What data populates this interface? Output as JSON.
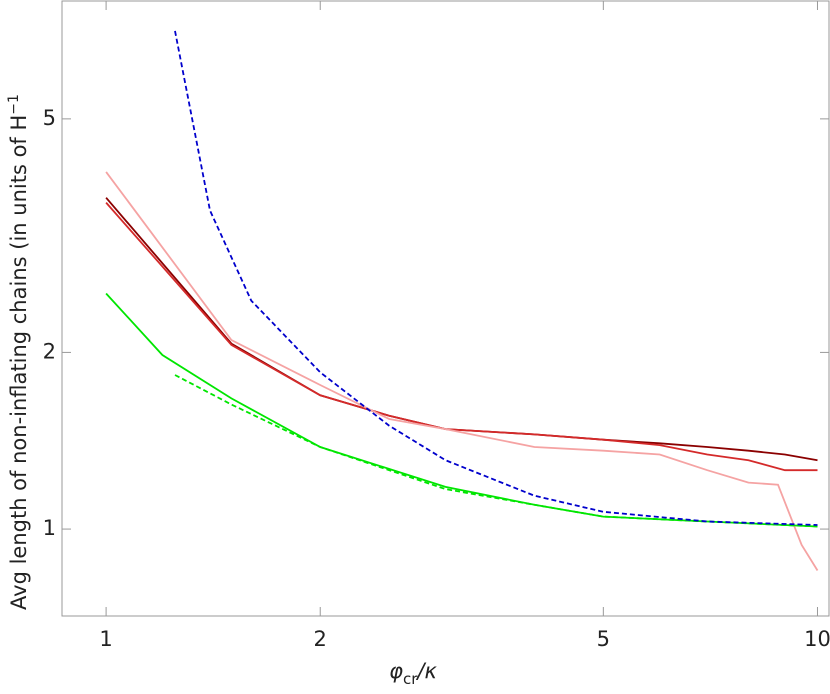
{
  "chart_data": {
    "type": "line",
    "xlabel": [
      "φ",
      "cr",
      "/κ"
    ],
    "ylabel": [
      "Avg length of non-inflating chains (in units of H",
      "−1"
    ],
    "xscale": "log",
    "yscale": "log",
    "xlim": [
      0.867,
      10.38
    ],
    "ylim": [
      0.711,
      7.94
    ],
    "xticks": [
      1,
      2,
      5,
      10
    ],
    "yticks": [
      1,
      2,
      5
    ],
    "series": [
      {
        "color": "#8b0000",
        "dash": false,
        "x": [
          1,
          1.5,
          2,
          2.5,
          3,
          4,
          5,
          6,
          7,
          8,
          9,
          10
        ],
        "values": [
          3.67,
          2.07,
          1.69,
          1.56,
          1.48,
          1.45,
          1.42,
          1.4,
          1.38,
          1.36,
          1.34,
          1.31
        ]
      },
      {
        "color": "#d42a2a",
        "dash": false,
        "x": [
          1,
          1.5,
          2,
          2.5,
          3,
          4,
          5,
          6,
          7,
          8,
          9,
          10
        ],
        "values": [
          3.6,
          2.06,
          1.69,
          1.56,
          1.48,
          1.45,
          1.42,
          1.39,
          1.34,
          1.31,
          1.26,
          1.26
        ]
      },
      {
        "color": "#f5a3a3",
        "dash": false,
        "x": [
          1,
          1.5,
          2,
          2.5,
          3,
          4,
          5,
          6,
          7,
          8,
          8.8,
          9.5,
          10
        ],
        "values": [
          4.06,
          2.1,
          1.76,
          1.54,
          1.48,
          1.38,
          1.36,
          1.34,
          1.26,
          1.2,
          1.19,
          0.94,
          0.85
        ]
      },
      {
        "color": "#00e600",
        "dash": false,
        "x": [
          1,
          1.2,
          1.5,
          2,
          3,
          4,
          5,
          7,
          10
        ],
        "values": [
          2.52,
          1.98,
          1.67,
          1.38,
          1.18,
          1.1,
          1.05,
          1.03,
          1.01
        ]
      },
      {
        "color": "#00e600",
        "dash": true,
        "x": [
          1.25,
          1.5,
          2,
          3,
          4,
          5,
          7,
          10
        ],
        "values": [
          1.83,
          1.63,
          1.38,
          1.17,
          1.1,
          1.05,
          1.03,
          1.01
        ]
      },
      {
        "color": "#0000cc",
        "dash": true,
        "x": [
          1.25,
          1.4,
          1.6,
          2,
          2.5,
          3,
          4,
          5,
          7,
          10
        ],
        "values": [
          7.06,
          3.49,
          2.45,
          1.85,
          1.5,
          1.31,
          1.14,
          1.07,
          1.03,
          1.016
        ]
      }
    ]
  }
}
